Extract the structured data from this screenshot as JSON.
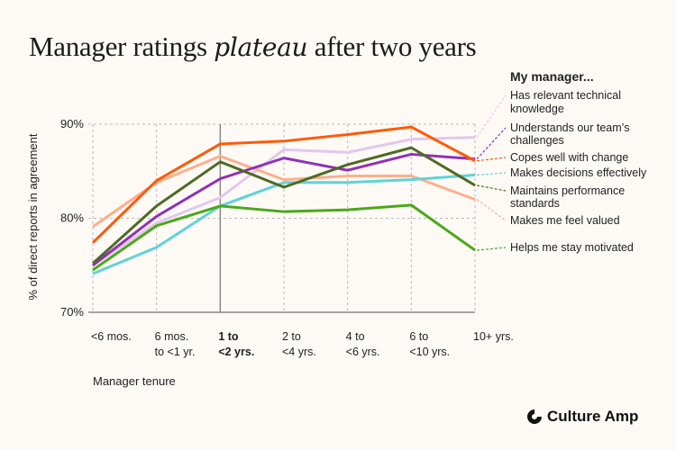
{
  "title": {
    "before": "Manager ratings ",
    "emphasis": "plateau",
    "after": " after two years"
  },
  "logo": {
    "text": "Culture Amp"
  },
  "chart_data": {
    "type": "line",
    "title": "Manager ratings plateau after two years",
    "xlabel": "Manager tenure",
    "ylabel": "% of direct reports in agreement",
    "legend_title": "My manager...",
    "legend_placement": "right",
    "grid": true,
    "ylim": [
      70,
      90
    ],
    "yticks": [
      {
        "value": 90,
        "label": "90%"
      },
      {
        "value": 80,
        "label": "80%"
      },
      {
        "value": 70,
        "label": "70%"
      }
    ],
    "categories": [
      {
        "line1": "<6 mos.",
        "line2": "",
        "bold": false
      },
      {
        "line1": "6 mos.",
        "line2": "to <1 yr.",
        "bold": false
      },
      {
        "line1": "1 to",
        "line2": "<2 yrs.",
        "bold": true
      },
      {
        "line1": "2 to",
        "line2": "<4 yrs.",
        "bold": false
      },
      {
        "line1": "4 to",
        "line2": "<6 yrs.",
        "bold": false
      },
      {
        "line1": "6 to",
        "line2": "<10 yrs.",
        "bold": false
      },
      {
        "line1": "10+ yrs.",
        "line2": "",
        "bold": false
      }
    ],
    "highlighted_category": "1 to <2 yrs.",
    "series": [
      {
        "name": "Has relevant technical knowledge",
        "label_lines": [
          "Has relevant technical",
          "knowledge"
        ],
        "color": "#e2c8ec",
        "values": [
          75.0,
          79.5,
          82.2,
          87.3,
          87.0,
          88.4,
          88.6
        ]
      },
      {
        "name": "Understands our team's challenges",
        "label_lines": [
          "Understands our team’s",
          "challenges"
        ],
        "color": "#9130b8",
        "values": [
          75.0,
          80.2,
          84.2,
          86.4,
          85.1,
          86.8,
          86.3
        ]
      },
      {
        "name": "Copes well with change",
        "label_lines": [
          "Copes well with change"
        ],
        "color": "#ff5a0a",
        "values": [
          77.4,
          84.0,
          87.9,
          88.2,
          88.9,
          89.7,
          86.1
        ]
      },
      {
        "name": "Makes decisions effectively",
        "label_lines": [
          "Makes decisions effectively"
        ],
        "color": "#5fd3d6",
        "values": [
          74.1,
          76.9,
          81.3,
          83.8,
          83.8,
          84.1,
          84.6
        ]
      },
      {
        "name": "Maintains performance standards",
        "label_lines": [
          "Maintains performance",
          "standards"
        ],
        "color": "#4e6b22",
        "values": [
          75.2,
          81.3,
          86.0,
          83.3,
          85.7,
          87.5,
          83.5
        ]
      },
      {
        "name": "Makes me feel valued",
        "label_lines": [
          "Makes me feel valued"
        ],
        "color": "#ffae8c",
        "values": [
          79.1,
          83.8,
          86.6,
          84.1,
          84.5,
          84.5,
          82.0
        ]
      },
      {
        "name": "Helps me stay motivated",
        "label_lines": [
          "Helps me stay motivated"
        ],
        "color": "#4aa81a",
        "values": [
          74.5,
          79.2,
          81.3,
          80.7,
          80.9,
          81.4,
          76.6
        ]
      }
    ]
  }
}
